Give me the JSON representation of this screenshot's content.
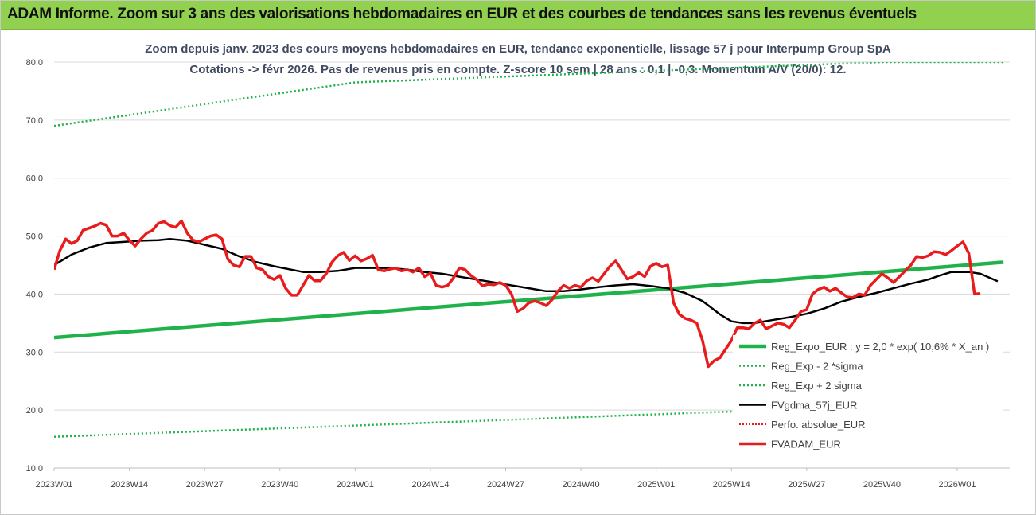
{
  "banner": {
    "title": "ADAM Informe. Zoom sur 3 ans des valorisations hebdomadaires en EUR et des courbes de tendances sans les revenus éventuels"
  },
  "colors": {
    "banner": "#92d050",
    "expo": "#1fb24a",
    "dotted": "#1fb24a",
    "fv": "#000000",
    "perfo": "#e81c1c",
    "adam": "#e81c1c"
  },
  "chart_data": {
    "type": "line",
    "title_line1": "Zoom depuis janv. 2023 des cours moyens hebdomadaires en EUR, tendance exponentielle, lissage 57 j pour Interpump Group SpA",
    "title_line2": "Cotations -> févr 2026. Pas de revenus pris en compte. Z-score 10 sem | 28 ans : 0,1 | -0,3. Momentum A/V (20/0): 12.",
    "ylim": [
      10,
      80
    ],
    "y_ticks": [
      "10,0",
      "20,0",
      "30,0",
      "40,0",
      "50,0",
      "60,0",
      "70,0",
      "80,0"
    ],
    "x_range_weeks": [
      0,
      160
    ],
    "x_ticks": [
      {
        "label": "2023W01",
        "w": 0
      },
      {
        "label": "2023W14",
        "w": 13
      },
      {
        "label": "2023W27",
        "w": 26
      },
      {
        "label": "2023W40",
        "w": 39
      },
      {
        "label": "2024W01",
        "w": 52
      },
      {
        "label": "2024W14",
        "w": 65
      },
      {
        "label": "2024W27",
        "w": 78
      },
      {
        "label": "2024W40",
        "w": 91
      },
      {
        "label": "2025W01",
        "w": 104
      },
      {
        "label": "2025W14",
        "w": 117
      },
      {
        "label": "2025W27",
        "w": 130
      },
      {
        "label": "2025W40",
        "w": 143
      },
      {
        "label": "2026W01",
        "w": 156
      }
    ],
    "series": [
      {
        "name": "Reg_Expo_EUR : y = 2,0 * exp( 10,6% *  X_an )",
        "style": "thick-solid",
        "points": [
          [
            0,
            32.5
          ],
          [
            164,
            45.5
          ]
        ]
      },
      {
        "name": "Reg_Exp - 2 *sigma",
        "style": "dotted",
        "points": [
          [
            0,
            15.4
          ],
          [
            164,
            21.5
          ]
        ]
      },
      {
        "name": "Reg_Exp + 2 sigma",
        "style": "dotted",
        "points": [
          [
            0,
            69.0
          ],
          [
            52,
            76.5
          ],
          [
            143,
            80
          ],
          [
            164,
            80
          ]
        ]
      },
      {
        "name": "FVgdma_57j_EUR",
        "style": "solid",
        "points": [
          [
            0,
            45
          ],
          [
            3,
            46.8
          ],
          [
            6,
            48
          ],
          [
            9,
            48.8
          ],
          [
            12,
            49
          ],
          [
            15,
            49.2
          ],
          [
            18,
            49.3
          ],
          [
            20,
            49.5
          ],
          [
            23,
            49.2
          ],
          [
            26,
            48.5
          ],
          [
            29,
            47.8
          ],
          [
            32,
            46.5
          ],
          [
            35,
            45.5
          ],
          [
            38,
            44.8
          ],
          [
            41,
            44.2
          ],
          [
            43,
            43.8
          ],
          [
            46,
            43.8
          ],
          [
            49,
            44
          ],
          [
            52,
            44.5
          ],
          [
            55,
            44.5
          ],
          [
            58,
            44.5
          ],
          [
            61,
            44.2
          ],
          [
            64,
            43.8
          ],
          [
            67,
            43.5
          ],
          [
            70,
            43
          ],
          [
            73,
            42.5
          ],
          [
            76,
            42
          ],
          [
            79,
            41.5
          ],
          [
            82,
            41
          ],
          [
            85,
            40.5
          ],
          [
            88,
            40.5
          ],
          [
            91,
            40.8
          ],
          [
            94,
            41.2
          ],
          [
            97,
            41.5
          ],
          [
            100,
            41.7
          ],
          [
            103,
            41.4
          ],
          [
            106,
            41
          ],
          [
            109,
            40.2
          ],
          [
            112,
            38.8
          ],
          [
            115,
            36.5
          ],
          [
            117,
            35.3
          ],
          [
            119,
            35
          ],
          [
            121,
            35
          ],
          [
            124,
            35.5
          ],
          [
            127,
            36
          ],
          [
            130,
            36.6
          ],
          [
            133,
            37.5
          ],
          [
            136,
            38.7
          ],
          [
            139,
            39.5
          ],
          [
            142,
            40.2
          ],
          [
            145,
            41
          ],
          [
            148,
            41.8
          ],
          [
            151,
            42.5
          ],
          [
            153,
            43.2
          ],
          [
            155,
            43.8
          ],
          [
            158,
            43.8
          ],
          [
            160,
            43.5
          ],
          [
            163,
            42.2
          ]
        ]
      },
      {
        "name": "Perfo. absolue_EUR",
        "style": "red-dotted",
        "points": []
      },
      {
        "name": "FVADAM_EUR",
        "style": "thick-red",
        "points": [
          [
            0,
            44.2
          ],
          [
            1,
            47.5
          ],
          [
            2,
            49.5
          ],
          [
            3,
            48.7
          ],
          [
            4,
            49.2
          ],
          [
            5,
            51
          ],
          [
            7,
            51.7
          ],
          [
            8,
            52.2
          ],
          [
            9,
            51.9
          ],
          [
            10,
            50
          ],
          [
            11,
            50
          ],
          [
            12,
            50.5
          ],
          [
            13,
            49.3
          ],
          [
            14,
            48.3
          ],
          [
            15,
            49.5
          ],
          [
            16,
            50.5
          ],
          [
            17,
            51
          ],
          [
            18,
            52.2
          ],
          [
            19,
            52.5
          ],
          [
            20,
            51.8
          ],
          [
            21,
            51.5
          ],
          [
            22,
            52.6
          ],
          [
            23,
            50.5
          ],
          [
            24,
            49.3
          ],
          [
            25,
            49
          ],
          [
            26,
            49.5
          ],
          [
            27,
            50
          ],
          [
            28,
            50.2
          ],
          [
            29,
            49.5
          ],
          [
            30,
            46
          ],
          [
            31,
            45
          ],
          [
            32,
            44.7
          ],
          [
            33,
            46.5
          ],
          [
            34,
            46.5
          ],
          [
            35,
            44.5
          ],
          [
            36,
            44.2
          ],
          [
            37,
            43
          ],
          [
            38,
            42.5
          ],
          [
            39,
            43.2
          ],
          [
            40,
            41
          ],
          [
            41,
            39.8
          ],
          [
            42,
            39.8
          ],
          [
            43,
            41.5
          ],
          [
            44,
            43.2
          ],
          [
            45,
            42.3
          ],
          [
            46,
            42.3
          ],
          [
            47,
            43.5
          ],
          [
            48,
            45.5
          ],
          [
            49,
            46.6
          ],
          [
            50,
            47.2
          ],
          [
            51,
            45.8
          ],
          [
            52,
            46.6
          ],
          [
            53,
            45.7
          ],
          [
            54,
            46.1
          ],
          [
            55,
            46.7
          ],
          [
            56,
            44.2
          ],
          [
            57,
            44
          ],
          [
            58,
            44.3
          ],
          [
            59,
            44.5
          ],
          [
            60,
            44
          ],
          [
            61,
            44.2
          ],
          [
            62,
            43.8
          ],
          [
            63,
            44.5
          ],
          [
            64,
            43
          ],
          [
            65,
            43.6
          ],
          [
            66,
            41.5
          ],
          [
            67,
            41.2
          ],
          [
            68,
            41.5
          ],
          [
            69,
            42.8
          ],
          [
            70,
            44.5
          ],
          [
            71,
            44.2
          ],
          [
            72,
            43.2
          ],
          [
            73,
            42.5
          ],
          [
            74,
            41.4
          ],
          [
            75,
            41.7
          ],
          [
            76,
            41.6
          ],
          [
            77,
            42
          ],
          [
            78,
            41.5
          ],
          [
            79,
            40
          ],
          [
            80,
            37
          ],
          [
            81,
            37.5
          ],
          [
            82,
            38.5
          ],
          [
            83,
            38.8
          ],
          [
            84,
            38.5
          ],
          [
            85,
            38
          ],
          [
            86,
            39
          ],
          [
            87,
            40.5
          ],
          [
            88,
            41.5
          ],
          [
            89,
            41
          ],
          [
            90,
            41.5
          ],
          [
            91,
            41.2
          ],
          [
            92,
            42.3
          ],
          [
            93,
            42.8
          ],
          [
            94,
            42.2
          ],
          [
            95,
            43.5
          ],
          [
            96,
            44.8
          ],
          [
            97,
            45.7
          ],
          [
            98,
            44.2
          ],
          [
            99,
            42.6
          ],
          [
            100,
            43
          ],
          [
            101,
            43.7
          ],
          [
            102,
            43
          ],
          [
            103,
            44.8
          ],
          [
            104,
            45.3
          ],
          [
            105,
            44.7
          ],
          [
            106,
            45
          ],
          [
            107,
            38.5
          ],
          [
            108,
            36.5
          ],
          [
            109,
            35.8
          ],
          [
            110,
            35.5
          ],
          [
            111,
            35
          ],
          [
            112,
            32
          ],
          [
            113,
            27.5
          ],
          [
            114,
            28.5
          ],
          [
            115,
            29
          ],
          [
            116,
            30.5
          ],
          [
            117,
            32
          ],
          [
            118,
            34.2
          ],
          [
            119,
            34.2
          ],
          [
            120,
            34
          ],
          [
            121,
            35
          ],
          [
            122,
            35.5
          ],
          [
            123,
            34
          ],
          [
            124,
            34.5
          ],
          [
            125,
            35
          ],
          [
            126,
            34.8
          ],
          [
            127,
            34.2
          ],
          [
            128,
            35.5
          ],
          [
            129,
            37
          ],
          [
            130,
            37.3
          ],
          [
            131,
            40
          ],
          [
            132,
            40.8
          ],
          [
            133,
            41.2
          ],
          [
            134,
            40.5
          ],
          [
            135,
            41
          ],
          [
            136,
            40.2
          ],
          [
            137,
            39.5
          ],
          [
            138,
            39.4
          ],
          [
            139,
            40
          ],
          [
            140,
            39.8
          ],
          [
            141,
            41.5
          ],
          [
            142,
            42.5
          ],
          [
            143,
            43.5
          ],
          [
            144,
            42.8
          ],
          [
            145,
            42
          ],
          [
            146,
            43
          ],
          [
            147,
            44
          ],
          [
            148,
            45
          ],
          [
            149,
            46.5
          ],
          [
            150,
            46.3
          ],
          [
            151,
            46.6
          ],
          [
            152,
            47.3
          ],
          [
            153,
            47.2
          ],
          [
            154,
            46.8
          ],
          [
            155,
            47.5
          ],
          [
            156,
            48.3
          ],
          [
            157,
            49
          ],
          [
            158,
            47
          ],
          [
            159,
            40
          ],
          [
            160,
            40.1
          ]
        ]
      }
    ],
    "legend_position": "bottom-right",
    "grid": "horizontal"
  }
}
